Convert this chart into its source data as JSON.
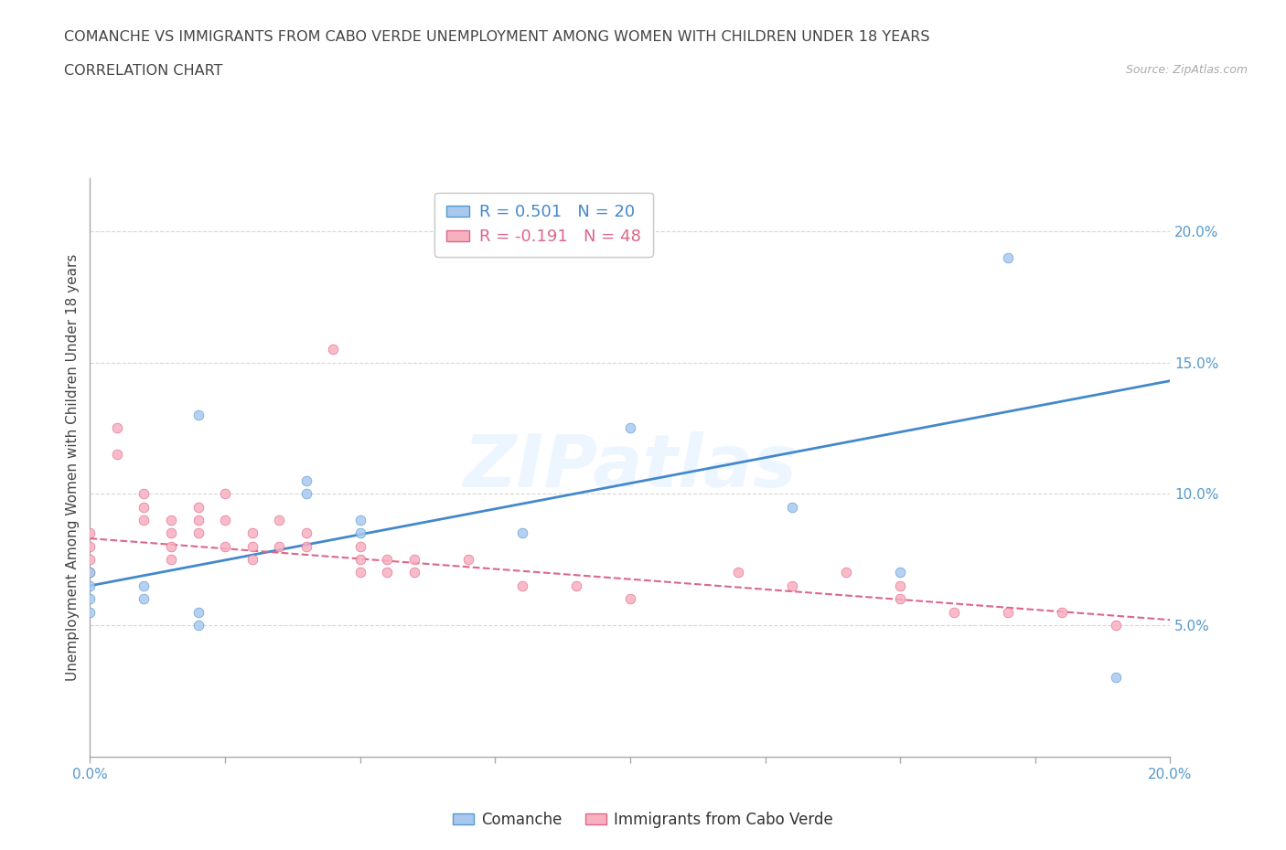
{
  "title_line1": "COMANCHE VS IMMIGRANTS FROM CABO VERDE UNEMPLOYMENT AMONG WOMEN WITH CHILDREN UNDER 18 YEARS",
  "title_line2": "CORRELATION CHART",
  "source": "Source: ZipAtlas.com",
  "ylabel": "Unemployment Among Women with Children Under 18 years",
  "xlim": [
    0.0,
    0.2
  ],
  "ylim": [
    0.0,
    0.22
  ],
  "yticks": [
    0.05,
    0.1,
    0.15,
    0.2
  ],
  "xticks": [
    0.0,
    0.025,
    0.05,
    0.075,
    0.1,
    0.125,
    0.15,
    0.175,
    0.2
  ],
  "ytick_labels": [
    "5.0%",
    "10.0%",
    "15.0%",
    "20.0%"
  ],
  "xtick_labels_left": "0.0%",
  "xtick_labels_right": "20.0%",
  "watermark": "ZIPatlas",
  "blue_scatter_color": "#a8c8f0",
  "blue_scatter_edge": "#5599cc",
  "pink_scatter_color": "#f8b0c0",
  "pink_scatter_edge": "#dd6688",
  "blue_line_color": "#4488cc",
  "pink_line_color": "#dd6688",
  "grid_color": "#cccccc",
  "title_color": "#444444",
  "ylabel_color": "#444444",
  "ytick_color": "#5599cc",
  "xtick_color": "#5599cc",
  "comanche_points": [
    [
      0.0,
      0.07
    ],
    [
      0.0,
      0.065
    ],
    [
      0.0,
      0.06
    ],
    [
      0.0,
      0.055
    ],
    [
      0.01,
      0.065
    ],
    [
      0.01,
      0.06
    ],
    [
      0.02,
      0.13
    ],
    [
      0.02,
      0.055
    ],
    [
      0.02,
      0.05
    ],
    [
      0.04,
      0.105
    ],
    [
      0.04,
      0.1
    ],
    [
      0.05,
      0.09
    ],
    [
      0.05,
      0.085
    ],
    [
      0.08,
      0.085
    ],
    [
      0.1,
      0.125
    ],
    [
      0.13,
      0.095
    ],
    [
      0.15,
      0.07
    ],
    [
      0.17,
      0.19
    ],
    [
      0.19,
      0.03
    ]
  ],
  "caboverde_points": [
    [
      0.0,
      0.085
    ],
    [
      0.0,
      0.08
    ],
    [
      0.0,
      0.075
    ],
    [
      0.0,
      0.07
    ],
    [
      0.005,
      0.125
    ],
    [
      0.005,
      0.115
    ],
    [
      0.01,
      0.1
    ],
    [
      0.01,
      0.095
    ],
    [
      0.01,
      0.09
    ],
    [
      0.015,
      0.09
    ],
    [
      0.015,
      0.085
    ],
    [
      0.015,
      0.08
    ],
    [
      0.015,
      0.075
    ],
    [
      0.02,
      0.095
    ],
    [
      0.02,
      0.09
    ],
    [
      0.02,
      0.085
    ],
    [
      0.025,
      0.1
    ],
    [
      0.025,
      0.09
    ],
    [
      0.025,
      0.08
    ],
    [
      0.03,
      0.085
    ],
    [
      0.03,
      0.08
    ],
    [
      0.03,
      0.075
    ],
    [
      0.035,
      0.09
    ],
    [
      0.035,
      0.08
    ],
    [
      0.04,
      0.085
    ],
    [
      0.04,
      0.08
    ],
    [
      0.045,
      0.155
    ],
    [
      0.05,
      0.08
    ],
    [
      0.05,
      0.075
    ],
    [
      0.05,
      0.07
    ],
    [
      0.055,
      0.075
    ],
    [
      0.055,
      0.07
    ],
    [
      0.06,
      0.075
    ],
    [
      0.06,
      0.07
    ],
    [
      0.07,
      0.075
    ],
    [
      0.08,
      0.065
    ],
    [
      0.09,
      0.065
    ],
    [
      0.1,
      0.06
    ],
    [
      0.12,
      0.07
    ],
    [
      0.13,
      0.065
    ],
    [
      0.14,
      0.07
    ],
    [
      0.15,
      0.065
    ],
    [
      0.15,
      0.06
    ],
    [
      0.16,
      0.055
    ],
    [
      0.17,
      0.055
    ],
    [
      0.18,
      0.055
    ],
    [
      0.19,
      0.05
    ]
  ],
  "blue_trendline": [
    [
      0.0,
      0.065
    ],
    [
      0.2,
      0.143
    ]
  ],
  "pink_trendline": [
    [
      0.0,
      0.083
    ],
    [
      0.2,
      0.052
    ]
  ]
}
